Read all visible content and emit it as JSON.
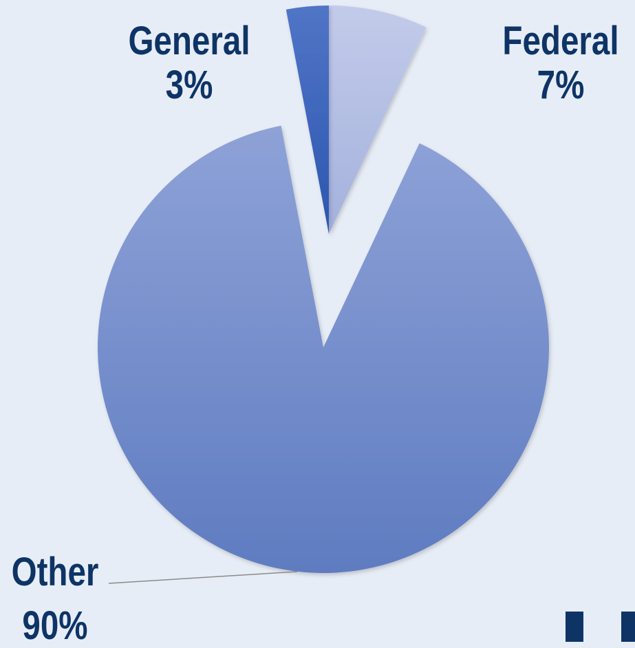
{
  "chart_data": {
    "type": "pie",
    "title": "",
    "slices": [
      {
        "label": "Federal",
        "value": 7,
        "display": "7%",
        "color": "#b4bfe2",
        "exploded": true
      },
      {
        "label": "Other",
        "value": 90,
        "display": "90%",
        "color": "#7b93d2",
        "exploded": false
      },
      {
        "label": "General",
        "value": 3,
        "display": "3%",
        "color": "#3d63b9",
        "exploded": true
      }
    ],
    "start_angle": "12 o'clock, clockwise",
    "legend": "none",
    "leader_line_color": "#8a8a8a"
  },
  "labels": {
    "general": {
      "name": "General",
      "pct": "3%"
    },
    "federal": {
      "name": "Federal",
      "pct": "7%"
    },
    "other": {
      "name": "Other",
      "pct": "90%"
    }
  },
  "colors": {
    "background": "#e7edf6",
    "label_text": "#0e3466"
  }
}
